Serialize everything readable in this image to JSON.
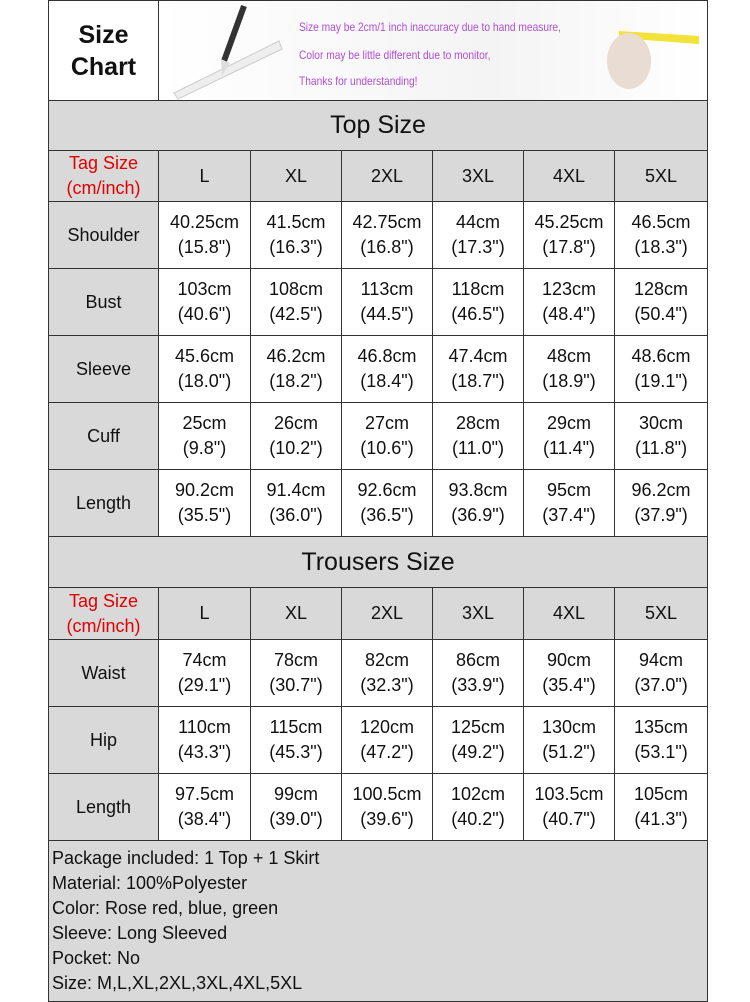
{
  "header": {
    "title_line1": "Size",
    "title_line2": "Chart",
    "notes": [
      "Size may be 2cm/1 inch inaccuracy due to hand measure,",
      "Color may be little different due to monitor,",
      "Thanks for understanding!"
    ]
  },
  "tag_label_1": "Tag Size",
  "tag_label_2": "(cm/inch)",
  "sizes": [
    "L",
    "XL",
    "2XL",
    "3XL",
    "4XL",
    "5XL"
  ],
  "top": {
    "title": "Top  Size",
    "rows": [
      {
        "label": "Shoulder",
        "cm": [
          "40.25cm",
          "41.5cm",
          "42.75cm",
          "44cm",
          "45.25cm",
          "46.5cm"
        ],
        "in": [
          "(15.8\")",
          "(16.3\")",
          "(16.8\")",
          "(17.3\")",
          "(17.8\")",
          "(18.3\")"
        ]
      },
      {
        "label": "Bust",
        "cm": [
          "103cm",
          "108cm",
          "113cm",
          "118cm",
          "123cm",
          "128cm"
        ],
        "in": [
          "(40.6\")",
          "(42.5\")",
          "(44.5\")",
          "(46.5\")",
          "(48.4\")",
          "(50.4\")"
        ]
      },
      {
        "label": "Sleeve",
        "cm": [
          "45.6cm",
          "46.2cm",
          "46.8cm",
          "47.4cm",
          "48cm",
          "48.6cm"
        ],
        "in": [
          "(18.0\")",
          "(18.2\")",
          "(18.4\")",
          "(18.7\")",
          "(18.9\")",
          "(19.1\")"
        ]
      },
      {
        "label": "Cuff",
        "cm": [
          "25cm",
          "26cm",
          "27cm",
          "28cm",
          "29cm",
          "30cm"
        ],
        "in": [
          "(9.8\")",
          "(10.2\")",
          "(10.6\")",
          "(11.0\")",
          "(11.4\")",
          "(11.8\")"
        ]
      },
      {
        "label": "Length",
        "cm": [
          "90.2cm",
          "91.4cm",
          "92.6cm",
          "93.8cm",
          "95cm",
          "96.2cm"
        ],
        "in": [
          "(35.5\")",
          "(36.0\")",
          "(36.5\")",
          "(36.9\")",
          "(37.4\")",
          "(37.9\")"
        ]
      }
    ]
  },
  "trousers": {
    "title": "Trousers  Size",
    "rows": [
      {
        "label": "Waist",
        "cm": [
          "74cm",
          "78cm",
          "82cm",
          "86cm",
          "90cm",
          "94cm"
        ],
        "in": [
          "(29.1\")",
          "(30.7\")",
          "(32.3\")",
          "(33.9\")",
          "(35.4\")",
          "(37.0\")"
        ]
      },
      {
        "label": "Hip",
        "cm": [
          "110cm",
          "115cm",
          "120cm",
          "125cm",
          "130cm",
          "135cm"
        ],
        "in": [
          "(43.3\")",
          "(45.3\")",
          "(47.2\")",
          "(49.2\")",
          "(51.2\")",
          "(53.1\")"
        ]
      },
      {
        "label": "Length",
        "cm": [
          "97.5cm",
          "99cm",
          "100.5cm",
          "102cm",
          "103.5cm",
          "105cm"
        ],
        "in": [
          "(38.4\")",
          "(39.0\")",
          "(39.6\")",
          "(40.2\")",
          "(40.7\")",
          "(41.3\")"
        ]
      }
    ]
  },
  "footer": [
    "Package included: 1  Top + 1 Skirt",
    "Material: 100%Polyester",
    "Color: Rose red, blue, green",
    "Sleeve: Long Sleeved",
    "Pocket: No",
    "Size: M,L,XL,2XL,3XL,4XL,5XL"
  ]
}
